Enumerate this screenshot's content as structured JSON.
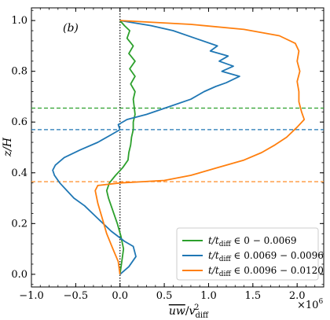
{
  "chart_data": {
    "type": "line",
    "panel_label": "(b)",
    "xlabel": "uw/v²diff",
    "xlabel_parts": {
      "main": "uw",
      "slash": "/",
      "v": "v",
      "sup": "2",
      "sub": "diff"
    },
    "ylabel": "z/H",
    "x_scale_label": "×10⁶",
    "x_scale_parts": {
      "base": "×10",
      "exp": "6"
    },
    "xlim": [
      -1.0,
      2.3
    ],
    "ylim": [
      -0.05,
      1.05
    ],
    "xticks": [
      -1.0,
      -0.5,
      0.0,
      0.5,
      1.0,
      1.5,
      2.0
    ],
    "xtick_labels": [
      "−1.0",
      "−0.5",
      "0.0",
      "0.5",
      "1.0",
      "1.5",
      "2.0"
    ],
    "yticks": [
      0.0,
      0.2,
      0.4,
      0.6,
      0.8,
      1.0
    ],
    "ytick_labels": [
      "0.0",
      "0.2",
      "0.4",
      "0.6",
      "0.8",
      "1.0"
    ],
    "vertical_reference_x": 0.0,
    "horizontal_reference_lines": [
      {
        "y": 0.655,
        "color": "#2ca02c"
      },
      {
        "y": 0.57,
        "color": "#1f77b4"
      },
      {
        "y": 0.365,
        "color": "#ff7f0e"
      }
    ],
    "legend": {
      "placement": "lower-right",
      "entries": [
        {
          "time": "t/t",
          "sub": "diff",
          "range": "∈ 0 − 0.0069"
        },
        {
          "time": "t/t",
          "sub": "diff",
          "range": "∈ 0.0069 − 0.0096"
        },
        {
          "time": "t/t",
          "sub": "diff",
          "range": "∈ 0.0096 − 0.0120"
        }
      ]
    },
    "series": [
      {
        "color": "#2ca02c",
        "points": [
          [
            0.0,
            0.0
          ],
          [
            0.02,
            0.05
          ],
          [
            0.04,
            0.1
          ],
          [
            0.01,
            0.15
          ],
          [
            -0.03,
            0.2
          ],
          [
            -0.08,
            0.25
          ],
          [
            -0.13,
            0.3
          ],
          [
            -0.15,
            0.33
          ],
          [
            -0.12,
            0.36
          ],
          [
            -0.05,
            0.39
          ],
          [
            0.03,
            0.42
          ],
          [
            0.09,
            0.45
          ],
          [
            0.1,
            0.48
          ],
          [
            0.12,
            0.51
          ],
          [
            0.13,
            0.54
          ],
          [
            0.15,
            0.57
          ],
          [
            0.15,
            0.6
          ],
          [
            0.17,
            0.63
          ],
          [
            0.16,
            0.66
          ],
          [
            0.15,
            0.69
          ],
          [
            0.17,
            0.72
          ],
          [
            0.12,
            0.75
          ],
          [
            0.17,
            0.78
          ],
          [
            0.11,
            0.81
          ],
          [
            0.17,
            0.84
          ],
          [
            0.1,
            0.87
          ],
          [
            0.15,
            0.9
          ],
          [
            0.08,
            0.93
          ],
          [
            0.11,
            0.96
          ],
          [
            0.05,
            0.98
          ],
          [
            0.0,
            1.0
          ]
        ]
      },
      {
        "color": "#1f77b4",
        "points": [
          [
            0.0,
            0.0
          ],
          [
            0.1,
            0.03
          ],
          [
            0.18,
            0.07
          ],
          [
            0.15,
            0.11
          ],
          [
            0.05,
            0.13
          ],
          [
            -0.1,
            0.17
          ],
          [
            -0.25,
            0.22
          ],
          [
            -0.4,
            0.27
          ],
          [
            -0.52,
            0.3
          ],
          [
            -0.6,
            0.33
          ],
          [
            -0.68,
            0.36
          ],
          [
            -0.74,
            0.39
          ],
          [
            -0.76,
            0.41
          ],
          [
            -0.73,
            0.43
          ],
          [
            -0.63,
            0.46
          ],
          [
            -0.45,
            0.49
          ],
          [
            -0.25,
            0.52
          ],
          [
            -0.1,
            0.55
          ],
          [
            0.0,
            0.57
          ],
          [
            -0.02,
            0.59
          ],
          [
            0.08,
            0.61
          ],
          [
            0.3,
            0.63
          ],
          [
            0.55,
            0.66
          ],
          [
            0.8,
            0.69
          ],
          [
            0.95,
            0.72
          ],
          [
            1.08,
            0.74
          ],
          [
            1.2,
            0.755
          ],
          [
            1.35,
            0.78
          ],
          [
            1.15,
            0.8
          ],
          [
            1.28,
            0.82
          ],
          [
            1.12,
            0.84
          ],
          [
            1.22,
            0.86
          ],
          [
            1.02,
            0.88
          ],
          [
            1.1,
            0.9
          ],
          [
            0.85,
            0.93
          ],
          [
            0.6,
            0.96
          ],
          [
            0.35,
            0.98
          ],
          [
            0.0,
            1.0
          ]
        ]
      },
      {
        "color": "#ff7f0e",
        "points": [
          [
            0.0,
            0.0
          ],
          [
            -0.02,
            0.05
          ],
          [
            -0.08,
            0.1
          ],
          [
            -0.15,
            0.16
          ],
          [
            -0.2,
            0.22
          ],
          [
            -0.25,
            0.28
          ],
          [
            -0.28,
            0.33
          ],
          [
            -0.25,
            0.35
          ],
          [
            0.0,
            0.36
          ],
          [
            0.25,
            0.365
          ],
          [
            0.5,
            0.37
          ],
          [
            0.8,
            0.39
          ],
          [
            1.1,
            0.42
          ],
          [
            1.4,
            0.45
          ],
          [
            1.6,
            0.48
          ],
          [
            1.75,
            0.51
          ],
          [
            1.88,
            0.54
          ],
          [
            2.0,
            0.58
          ],
          [
            2.08,
            0.61
          ],
          [
            2.05,
            0.64
          ],
          [
            2.02,
            0.68
          ],
          [
            2.02,
            0.72
          ],
          [
            2.0,
            0.76
          ],
          [
            2.03,
            0.8
          ],
          [
            2.0,
            0.84
          ],
          [
            2.02,
            0.88
          ],
          [
            1.98,
            0.91
          ],
          [
            1.8,
            0.94
          ],
          [
            1.4,
            0.965
          ],
          [
            0.8,
            0.985
          ],
          [
            0.0,
            1.0
          ]
        ]
      }
    ]
  }
}
